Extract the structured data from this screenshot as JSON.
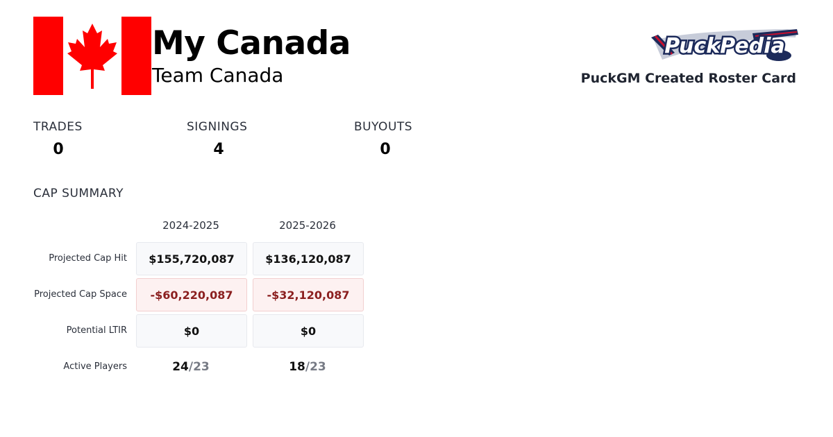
{
  "header": {
    "team_name": "My Canada",
    "team_subtitle": "Team Canada",
    "caption": "PuckGM Created Roster Card",
    "logo_text": "PuckPedia"
  },
  "colors": {
    "flag_red": "#ff0000",
    "negative_text": "#8b1f1f",
    "logo_navy": "#1c2a5a",
    "logo_red": "#c8102e"
  },
  "stats": [
    {
      "label": "TRADES",
      "value": "0"
    },
    {
      "label": "SIGNINGS",
      "value": "4"
    },
    {
      "label": "BUYOUTS",
      "value": "0"
    }
  ],
  "cap_summary": {
    "title": "CAP SUMMARY",
    "seasons": [
      "2024-2025",
      "2025-2026"
    ],
    "rows": [
      {
        "label": "Projected Cap Hit",
        "values": [
          "$155,720,087",
          "$136,120,087"
        ]
      },
      {
        "label": "Projected Cap Space",
        "values": [
          "-$60,220,087",
          "-$32,120,087"
        ]
      },
      {
        "label": "Potential LTIR",
        "values": [
          "$0",
          "$0"
        ]
      }
    ],
    "active_players": {
      "label": "Active Players",
      "values": [
        {
          "count": "24",
          "limit": "/23"
        },
        {
          "count": "18",
          "limit": "/23"
        }
      ]
    }
  }
}
